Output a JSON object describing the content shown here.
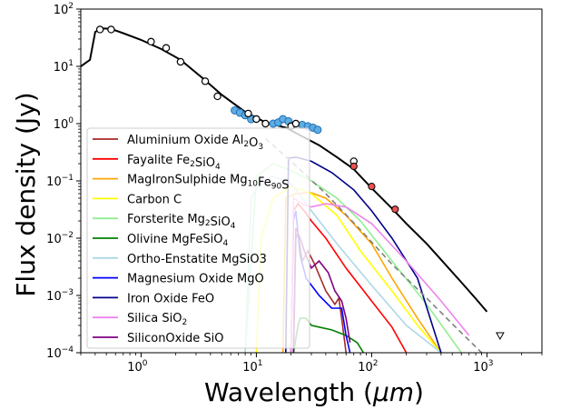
{
  "chart_data": {
    "type": "line",
    "xlabel_main": "Wavelength (",
    "xlabel_mu": "μm",
    "xlabel_end": ")",
    "ylabel": "Flux density (Jy)",
    "xscale": "log",
    "yscale": "log",
    "xlim": [
      0.3,
      3000
    ],
    "ylim": [
      0.0001,
      100
    ],
    "x_ticks": [
      {
        "value": 1,
        "base": "10",
        "exp": "0"
      },
      {
        "value": 10,
        "base": "10",
        "exp": "1"
      },
      {
        "value": 100,
        "base": "10",
        "exp": "2"
      },
      {
        "value": 1000,
        "base": "10",
        "exp": "3"
      }
    ],
    "y_ticks": [
      {
        "value": 0.0001,
        "base": "10",
        "exp": "−4"
      },
      {
        "value": 0.001,
        "base": "10",
        "exp": "−3"
      },
      {
        "value": 0.01,
        "base": "10",
        "exp": "−2"
      },
      {
        "value": 0.1,
        "base": "10",
        "exp": "−1"
      },
      {
        "value": 1,
        "base": "10",
        "exp": "0"
      },
      {
        "value": 10,
        "base": "10",
        "exp": "1"
      },
      {
        "value": 100,
        "base": "10",
        "exp": "2"
      }
    ],
    "legend": [
      {
        "label": "Aluminium Oxide Al",
        "sub1": "2",
        "mid": "O",
        "sub2": "3",
        "end": "",
        "color": "#a52a2a"
      },
      {
        "label": "Fayalite Fe",
        "sub1": "2",
        "mid": "SiO",
        "sub2": "4",
        "end": "",
        "color": "#ff0000"
      },
      {
        "label": "MagIronSulphide Mg",
        "sub1": "10",
        "mid": "Fe",
        "sub2": "90",
        "end": "S",
        "color": "#ffa500"
      },
      {
        "label": "Carbon C",
        "sub1": "",
        "mid": "",
        "sub2": "",
        "end": "",
        "color": "#ffff00"
      },
      {
        "label": "Forsterite Mg",
        "sub1": "2",
        "mid": "SiO",
        "sub2": "4",
        "end": "",
        "color": "#90ee90"
      },
      {
        "label": "Olivine MgFeSiO",
        "sub1": "4",
        "mid": "",
        "sub2": "",
        "end": "",
        "color": "#008000"
      },
      {
        "label": "Ortho-Enstatite MgSiO3",
        "sub1": "",
        "mid": "",
        "sub2": "",
        "end": "",
        "color": "#add8e6"
      },
      {
        "label": "Magnesium Oxide MgO",
        "sub1": "",
        "mid": "",
        "sub2": "",
        "end": "",
        "color": "#0000ff"
      },
      {
        "label": "Iron Oxide FeO",
        "sub1": "",
        "mid": "",
        "sub2": "",
        "end": "",
        "color": "#00008b"
      },
      {
        "label": "Silica SiO",
        "sub1": "2",
        "mid": "",
        "sub2": "",
        "end": "",
        "color": "#ee82ee"
      },
      {
        "label": "SiliconOxide SiO",
        "sub1": "",
        "mid": "",
        "sub2": "",
        "end": "",
        "color": "#800080"
      }
    ],
    "total_model": {
      "color": "#000000",
      "points": [
        [
          0.3,
          10
        ],
        [
          0.36,
          13
        ],
        [
          0.4,
          40
        ],
        [
          0.45,
          46
        ],
        [
          0.55,
          45
        ],
        [
          0.7,
          38
        ],
        [
          1,
          29
        ],
        [
          1.5,
          20
        ],
        [
          2.2,
          13
        ],
        [
          3.5,
          6
        ],
        [
          5,
          3.2
        ],
        [
          8,
          1.6
        ],
        [
          12,
          1.05
        ],
        [
          18,
          0.85
        ],
        [
          25,
          0.6
        ],
        [
          35,
          0.42
        ],
        [
          50,
          0.26
        ],
        [
          70,
          0.16
        ],
        [
          100,
          0.075
        ],
        [
          150,
          0.033
        ],
        [
          200,
          0.018
        ],
        [
          300,
          0.008
        ],
        [
          400,
          0.0042
        ],
        [
          600,
          0.0017
        ],
        [
          800,
          0.00088
        ],
        [
          1000,
          0.00052
        ]
      ]
    },
    "photosphere": {
      "color": "#808080",
      "points": [
        [
          12,
          0.55
        ],
        [
          20,
          0.22
        ],
        [
          40,
          0.06
        ],
        [
          80,
          0.014
        ],
        [
          150,
          0.0035
        ],
        [
          300,
          0.0009
        ],
        [
          500,
          0.00032
        ],
        [
          900,
          0.0001
        ]
      ]
    },
    "components": [
      {
        "name": "Aluminium Oxide",
        "color": "#a52a2a",
        "points": [
          [
            21,
            0.0001
          ],
          [
            22,
            0.01
          ],
          [
            23,
            0.012
          ],
          [
            25,
            0.004
          ],
          [
            28,
            0.006
          ],
          [
            32,
            0.0035
          ],
          [
            40,
            0.0012
          ],
          [
            48,
            0.0007
          ],
          [
            52,
            0.0009
          ],
          [
            56,
            0.0003
          ],
          [
            60,
            0.0001
          ]
        ]
      },
      {
        "name": "Fayalite",
        "color": "#ff0000",
        "points": [
          [
            20,
            0.0001
          ],
          [
            21,
            0.03
          ],
          [
            23,
            0.04
          ],
          [
            26,
            0.03
          ],
          [
            30,
            0.02
          ],
          [
            40,
            0.01
          ],
          [
            60,
            0.003
          ],
          [
            100,
            0.0008
          ],
          [
            150,
            0.00028
          ],
          [
            200,
            0.0001
          ]
        ]
      },
      {
        "name": "MagIronSulphide",
        "color": "#ffa500",
        "points": [
          [
            17,
            0.0001
          ],
          [
            18,
            0.05
          ],
          [
            22,
            0.06
          ],
          [
            30,
            0.062
          ],
          [
            40,
            0.05
          ],
          [
            60,
            0.025
          ],
          [
            100,
            0.008
          ],
          [
            150,
            0.002
          ],
          [
            250,
            0.0004
          ],
          [
            400,
            0.0001
          ]
        ]
      },
      {
        "name": "Carbon",
        "color": "#ffff00",
        "points": [
          [
            10,
            0.0001
          ],
          [
            11,
            0.01
          ],
          [
            14,
            0.05
          ],
          [
            20,
            0.08
          ],
          [
            30,
            0.06
          ],
          [
            50,
            0.025
          ],
          [
            80,
            0.006
          ],
          [
            150,
            0.0012
          ],
          [
            250,
            0.0003
          ],
          [
            400,
            0.0001
          ]
        ]
      },
      {
        "name": "Forsterite",
        "color": "#90ee90",
        "points": [
          [
            8,
            0.0001
          ],
          [
            10,
            0.12
          ],
          [
            14,
            0.2
          ],
          [
            20,
            0.15
          ],
          [
            30,
            0.1
          ],
          [
            50,
            0.05
          ],
          [
            80,
            0.02
          ],
          [
            150,
            0.004
          ],
          [
            300,
            0.0007
          ],
          [
            600,
            0.0001
          ]
        ]
      },
      {
        "name": "Olivine",
        "color": "#008000",
        "points": [
          [
            21,
            0.0001
          ],
          [
            23,
            0.0003
          ],
          [
            24,
            0.0004
          ],
          [
            27,
            0.0004
          ],
          [
            30,
            0.0003
          ],
          [
            35,
            0.00028
          ],
          [
            45,
            0.00025
          ],
          [
            60,
            0.0002
          ],
          [
            75,
            0.00015
          ],
          [
            85,
            0.0001
          ]
        ]
      },
      {
        "name": "Ortho-Enstatite",
        "color": "#add8e6",
        "points": [
          [
            8,
            0.0001
          ],
          [
            9,
            0.05
          ],
          [
            11,
            0.1
          ],
          [
            14,
            0.12
          ],
          [
            20,
            0.09
          ],
          [
            30,
            0.03
          ],
          [
            50,
            0.008
          ],
          [
            100,
            0.0015
          ],
          [
            200,
            0.0003
          ],
          [
            400,
            0.0001
          ]
        ]
      },
      {
        "name": "Magnesium Oxide",
        "color": "#0000ff",
        "points": [
          [
            20,
            0.0001
          ],
          [
            21,
            0.02
          ],
          [
            22,
            0.03
          ],
          [
            24,
            0.005
          ],
          [
            27,
            0.002
          ],
          [
            35,
            0.001
          ],
          [
            45,
            0.0006
          ],
          [
            55,
            0.0006
          ],
          [
            60,
            0.0002
          ],
          [
            65,
            0.0001
          ]
        ]
      },
      {
        "name": "Iron Oxide",
        "color": "#00008b",
        "points": [
          [
            18,
            0.0001
          ],
          [
            19,
            0.25
          ],
          [
            22,
            0.26
          ],
          [
            30,
            0.22
          ],
          [
            45,
            0.14
          ],
          [
            70,
            0.07
          ],
          [
            100,
            0.03
          ],
          [
            150,
            0.01
          ],
          [
            250,
            0.002
          ],
          [
            400,
            0.0001
          ]
        ]
      },
      {
        "name": "Silica",
        "color": "#ee82ee",
        "points": [
          [
            20,
            0.0001
          ],
          [
            21,
            0.05
          ],
          [
            25,
            0.04
          ],
          [
            30,
            0.035
          ],
          [
            40,
            0.04
          ],
          [
            60,
            0.035
          ],
          [
            100,
            0.018
          ],
          [
            200,
            0.004
          ],
          [
            400,
            0.0008
          ],
          [
            700,
            0.0002
          ]
        ]
      },
      {
        "name": "SiliconOxide",
        "color": "#800080",
        "points": [
          [
            21,
            0.0001
          ],
          [
            22,
            0.015
          ],
          [
            24,
            0.01
          ],
          [
            26,
            0.006
          ],
          [
            30,
            0.003
          ],
          [
            35,
            0.004
          ],
          [
            42,
            0.0025
          ],
          [
            48,
            0.0012
          ],
          [
            55,
            0.0008
          ],
          [
            60,
            0.0004
          ],
          [
            65,
            0.00015
          ]
        ]
      }
    ],
    "photometry_open": [
      {
        "x": 0.44,
        "y": 44
      },
      {
        "x": 0.55,
        "y": 44
      },
      {
        "x": 1.22,
        "y": 27
      },
      {
        "x": 1.65,
        "y": 21
      },
      {
        "x": 2.2,
        "y": 12
      },
      {
        "x": 3.6,
        "y": 5.5
      },
      {
        "x": 4.6,
        "y": 3
      },
      {
        "x": 8.5,
        "y": 1.5
      },
      {
        "x": 10,
        "y": 1.2
      },
      {
        "x": 12,
        "y": 1
      },
      {
        "x": 20,
        "y": 0.9
      },
      {
        "x": 22,
        "y": 1
      },
      {
        "x": 70,
        "y": 0.22
      }
    ],
    "photometry_red": [
      {
        "x": 70,
        "y": 0.18
      },
      {
        "x": 100,
        "y": 0.08
      },
      {
        "x": 160,
        "y": 0.032
      }
    ],
    "spectrum_points": [
      {
        "x": 6.5,
        "y": 1.7
      },
      {
        "x": 7.2,
        "y": 1.55
      },
      {
        "x": 8,
        "y": 1.4
      },
      {
        "x": 9,
        "y": 1.2
      },
      {
        "x": 14,
        "y": 1
      },
      {
        "x": 15.5,
        "y": 1.05
      },
      {
        "x": 17,
        "y": 1.2
      },
      {
        "x": 19,
        "y": 1.1
      },
      {
        "x": 25,
        "y": 0.95
      },
      {
        "x": 28,
        "y": 0.9
      },
      {
        "x": 31,
        "y": 0.85
      },
      {
        "x": 34,
        "y": 0.78
      }
    ],
    "upper_limit": {
      "x": 1300,
      "y": 0.0002
    }
  }
}
